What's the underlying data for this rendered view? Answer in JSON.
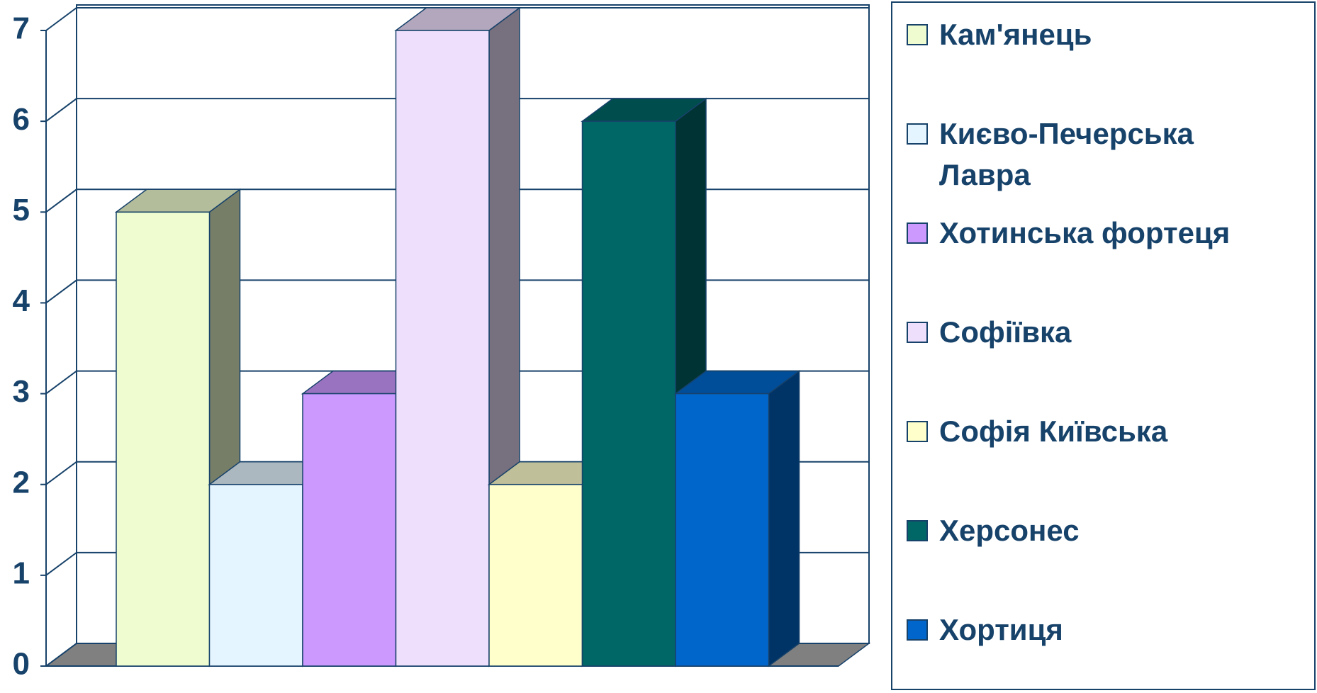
{
  "chart_data": {
    "type": "bar3d",
    "series": [
      {
        "name": "Кам'янець",
        "color": "#eefccf",
        "values": [
          5
        ]
      },
      {
        "name": "Києво-Печерська Лавра",
        "color": "#e5f5ff",
        "values": [
          2
        ]
      },
      {
        "name": "Хотинська фортеця",
        "color": "#cc99ff",
        "values": [
          3
        ]
      },
      {
        "name": "Софіївка",
        "color": "#eedffc",
        "values": [
          7
        ]
      },
      {
        "name": "Софія Київська",
        "color": "#ffffcc",
        "values": [
          2
        ]
      },
      {
        "name": "Херсонес",
        "color": "#006666",
        "values": [
          6
        ]
      },
      {
        "name": "Хортиця",
        "color": "#0066cc",
        "values": [
          3
        ]
      }
    ],
    "ylim": [
      0,
      7
    ],
    "yticks": [
      0,
      1,
      2,
      3,
      4,
      5,
      6,
      7
    ],
    "grid": true,
    "legend": "right"
  }
}
